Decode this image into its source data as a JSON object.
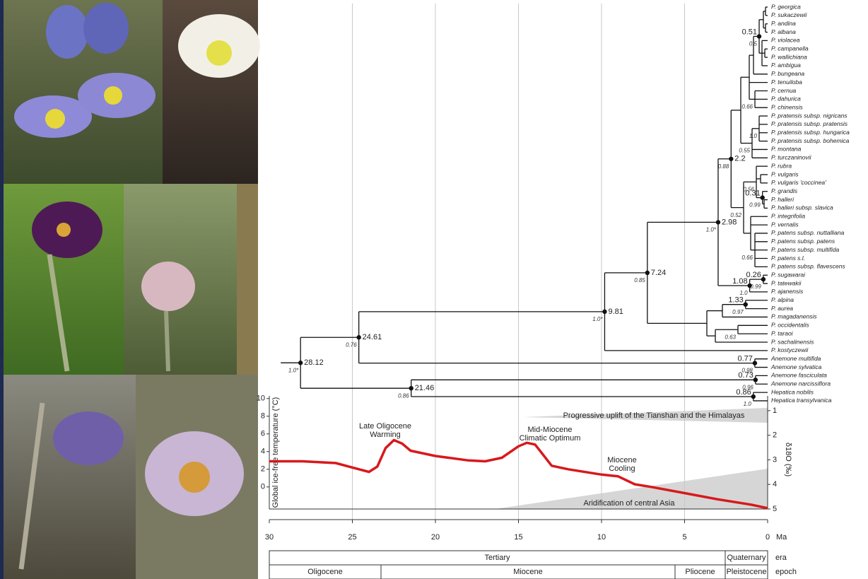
{
  "tree": {
    "leaves": [
      "P. georgica",
      "P. sukaczewii",
      "P. andina",
      "P. albana",
      "P. violacea",
      "P. campanella",
      "P. wallichiana",
      "P. ambigua",
      "P. bungeana",
      "P. tenuiloba",
      "P. cernua",
      "P. dahurica",
      "P. chinensis",
      "P. pratensis subsp. nigricans",
      "P. pratensis subsp. pratensis",
      "P. pratensis subsp. hungarica",
      "P. pratensis subsp. bohemica",
      "P. montana",
      "P. turczaninovii",
      "P. rubra",
      "P. vulgaris",
      "P. vulgaris 'coccinea'",
      "P. grandis",
      "P. halleri",
      "P. halleri subsp. slavica",
      "P. integrifolia",
      "P. vernalis",
      "P. patens subsp. nuttalliana",
      "P. patens subsp. patens",
      "P. patens subsp. multifida",
      "P. patens s.l.",
      "P. patens subsp. flavescens",
      "P. sugawarai",
      "P. tatewakii",
      "P. ajanensis",
      "P. alpina",
      "P. aurea",
      "P. magadanensis",
      "P. occidentalis",
      "P. taraoi",
      "P. sachalinensis",
      "P. kostyczewii",
      "Anemone multifida",
      "Anemone sylvatica",
      "Anemone fasciculata",
      "Anemone narcissiflora",
      "Hepatica nobilis",
      "Hepatica transylvanica"
    ],
    "nodes": [
      {
        "age": 28.12,
        "support": "1.0*"
      },
      {
        "age": 24.61,
        "support": "0.76"
      },
      {
        "age": 21.46,
        "support": "0.86"
      },
      {
        "age": 9.81,
        "support": "1.0*"
      },
      {
        "age": 7.24,
        "support": "0.85"
      },
      {
        "age": 2.98,
        "support": "1.0*"
      },
      {
        "age": 2.2,
        "support": "0.88"
      },
      {
        "age": 1.08,
        "support": "1.0"
      },
      {
        "age": 0.26,
        "support": "0.99"
      },
      {
        "age": 1.33,
        "support": "0.97"
      },
      {
        "age": 0.77,
        "support": "0.98"
      },
      {
        "age": 0.73,
        "support": "0.96"
      },
      {
        "age": 0.86,
        "support": "1.0"
      },
      {
        "age": 0.51,
        "support": "0.5"
      },
      {
        "age": 0.31,
        "support": "0.99"
      },
      {
        "support": "0.66"
      },
      {
        "support": "1.0"
      },
      {
        "support": "0.55"
      },
      {
        "support": "0.56"
      },
      {
        "support": "0.52"
      },
      {
        "support": "0.66"
      },
      {
        "support": "0.63"
      }
    ]
  },
  "chart_data": {
    "type": "line",
    "y_label": "Global ice-free temperature (°C)",
    "y2_label": "δ18O (‰)",
    "x_label": "Ma",
    "xlim": [
      30,
      0
    ],
    "xticks": [
      30,
      25,
      20,
      15,
      10,
      5,
      0
    ],
    "ylim": [
      -2.5,
      10.3
    ],
    "yticks": [
      0,
      2,
      4,
      6,
      8,
      10
    ],
    "y2lim": [
      5,
      0.4
    ],
    "y2ticks": [
      1,
      2,
      3,
      4,
      5
    ],
    "grid": true,
    "x": [
      30,
      28,
      26,
      25,
      24,
      23.5,
      23,
      22.5,
      22,
      21.5,
      20,
      18,
      17,
      16,
      15,
      14.5,
      14,
      13.5,
      13,
      12,
      10,
      9,
      8,
      7,
      5,
      3,
      1,
      0
    ],
    "series": [
      {
        "color": "#d7191c",
        "values": [
          2.9,
          2.9,
          2.7,
          2.2,
          1.7,
          2.3,
          4.4,
          5.3,
          4.9,
          4.1,
          3.5,
          3.0,
          2.9,
          3.3,
          4.6,
          5.0,
          4.8,
          3.6,
          2.4,
          2.0,
          1.4,
          1.2,
          0.3,
          0,
          -0.7,
          -1.4,
          -2.0,
          -2.4
        ]
      }
    ],
    "annotations": [
      "Late Oligocene",
      "Warming",
      "Mid-Miocene",
      "Climatic Optimum",
      "Miocene",
      "Cooling",
      "Progressive uplift of the Tianshan and the Himalayas",
      "Aridification of central Asia"
    ]
  },
  "timescale": {
    "era": {
      "label": "era",
      "units": [
        "Tertiary",
        "Quaternary"
      ]
    },
    "epoch": {
      "label": "epoch",
      "units": [
        "Oligocene",
        "Miocene",
        "Pliocene",
        "Pleistocene"
      ]
    }
  }
}
